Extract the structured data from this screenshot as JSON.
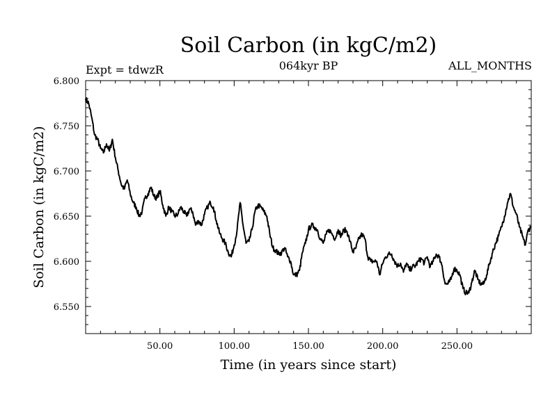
{
  "chart_data": {
    "type": "line",
    "title": "Soil Carbon (in kgC/m2)",
    "experiment_label": "Expt = tdwzR",
    "period_label": "064kyr BP",
    "months_label": "ALL_MONTHS",
    "xlabel": "Time (in years since start)",
    "ylabel": "Soil Carbon (in kgC/m2)",
    "xlim": [
      0,
      300
    ],
    "ylim": [
      6.52,
      6.8
    ],
    "xticks": [
      50,
      100,
      150,
      200,
      250
    ],
    "xtick_labels": [
      "50.00",
      "100.00",
      "150.00",
      "200.00",
      "250.00"
    ],
    "yticks": [
      6.55,
      6.6,
      6.65,
      6.7,
      6.75,
      6.8
    ],
    "ytick_labels": [
      "6.550",
      "6.600",
      "6.650",
      "6.700",
      "6.750",
      "6.800"
    ],
    "grid": false,
    "line_color": "#000000",
    "x": [
      0,
      2,
      4,
      6,
      8,
      10,
      12,
      14,
      16,
      18,
      20,
      22,
      24,
      26,
      28,
      30,
      32,
      34,
      36,
      38,
      40,
      42,
      44,
      46,
      48,
      50,
      52,
      54,
      56,
      58,
      60,
      62,
      64,
      66,
      68,
      70,
      72,
      74,
      76,
      78,
      80,
      82,
      84,
      86,
      88,
      90,
      92,
      94,
      96,
      98,
      100,
      102,
      104,
      106,
      108,
      110,
      112,
      114,
      116,
      118,
      120,
      122,
      124,
      126,
      128,
      130,
      132,
      134,
      136,
      138,
      140,
      142,
      144,
      146,
      148,
      150,
      152,
      154,
      156,
      158,
      160,
      162,
      164,
      166,
      168,
      170,
      172,
      174,
      176,
      178,
      180,
      182,
      184,
      186,
      188,
      190,
      192,
      194,
      196,
      198,
      200,
      202,
      204,
      206,
      208,
      210,
      212,
      214,
      216,
      218,
      220,
      222,
      224,
      226,
      228,
      230,
      232,
      234,
      236,
      238,
      240,
      242,
      244,
      246,
      248,
      250,
      252,
      254,
      256,
      258,
      260,
      262,
      264,
      266,
      268,
      270,
      272,
      274,
      276,
      278,
      280,
      282,
      284,
      286,
      288,
      290,
      292,
      294,
      296,
      298,
      300
    ],
    "values": [
      6.78,
      6.775,
      6.76,
      6.74,
      6.735,
      6.725,
      6.72,
      6.73,
      6.722,
      6.735,
      6.715,
      6.7,
      6.685,
      6.68,
      6.69,
      6.675,
      6.665,
      6.66,
      6.65,
      6.655,
      6.67,
      6.675,
      6.682,
      6.672,
      6.67,
      6.678,
      6.662,
      6.65,
      6.66,
      6.655,
      6.65,
      6.652,
      6.66,
      6.655,
      6.65,
      6.658,
      6.655,
      6.64,
      6.645,
      6.64,
      6.652,
      6.66,
      6.665,
      6.66,
      6.645,
      6.632,
      6.625,
      6.62,
      6.61,
      6.605,
      6.618,
      6.635,
      6.665,
      6.64,
      6.62,
      6.622,
      6.635,
      6.655,
      6.662,
      6.66,
      6.655,
      6.65,
      6.63,
      6.615,
      6.612,
      6.608,
      6.61,
      6.615,
      6.605,
      6.6,
      6.585,
      6.585,
      6.59,
      6.61,
      6.62,
      6.635,
      6.64,
      6.638,
      6.635,
      6.625,
      6.62,
      6.63,
      6.635,
      6.63,
      6.625,
      6.635,
      6.628,
      6.635,
      6.633,
      6.622,
      6.61,
      6.615,
      6.625,
      6.63,
      6.625,
      6.605,
      6.6,
      6.6,
      6.6,
      6.585,
      6.598,
      6.605,
      6.608,
      6.608,
      6.6,
      6.595,
      6.598,
      6.588,
      6.598,
      6.59,
      6.594,
      6.595,
      6.6,
      6.603,
      6.598,
      6.605,
      6.594,
      6.6,
      6.608,
      6.605,
      6.595,
      6.575,
      6.575,
      6.58,
      6.592,
      6.59,
      6.585,
      6.57,
      6.565,
      6.565,
      6.577,
      6.59,
      6.58,
      6.575,
      6.575,
      6.585,
      6.598,
      6.61,
      6.62,
      6.628,
      6.638,
      6.65,
      6.665,
      6.675,
      6.66,
      6.652,
      6.638,
      6.628,
      6.618,
      6.635,
      6.638
    ]
  }
}
